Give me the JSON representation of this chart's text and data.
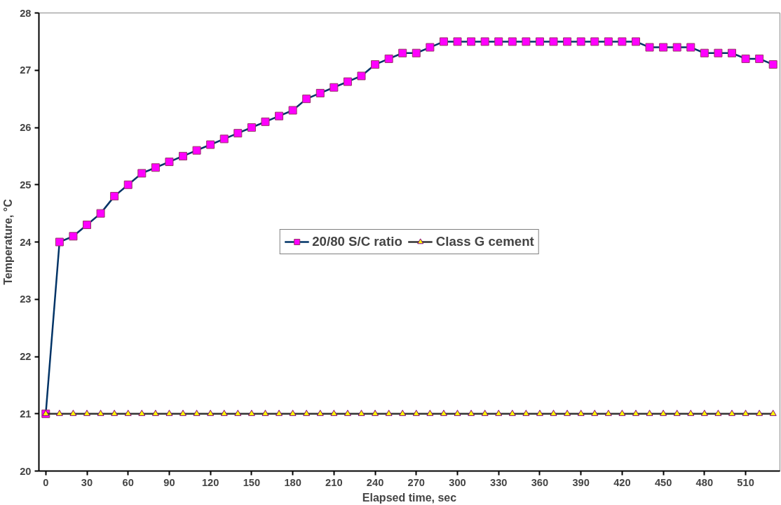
{
  "chart_data": {
    "type": "line",
    "xlabel": "Elapsed time, sec",
    "ylabel": "Temperature, °C",
    "x": [
      0,
      10,
      20,
      30,
      40,
      50,
      60,
      70,
      80,
      90,
      100,
      110,
      120,
      130,
      140,
      150,
      160,
      170,
      180,
      190,
      200,
      210,
      220,
      230,
      240,
      250,
      260,
      270,
      280,
      290,
      300,
      310,
      320,
      330,
      340,
      350,
      360,
      370,
      380,
      390,
      400,
      410,
      420,
      430,
      440,
      450,
      460,
      470,
      480,
      490,
      500,
      510,
      520,
      530
    ],
    "series": [
      {
        "name": "20/80 S/C ratio",
        "color": "#ff00ff",
        "marker": "square",
        "values": [
          21,
          24.0,
          24.1,
          24.3,
          24.5,
          24.8,
          25.0,
          25.2,
          25.3,
          25.4,
          25.5,
          25.6,
          25.7,
          25.8,
          25.9,
          26.0,
          26.1,
          26.2,
          26.3,
          26.5,
          26.6,
          26.7,
          26.8,
          26.9,
          27.1,
          27.2,
          27.3,
          27.3,
          27.4,
          27.5,
          27.5,
          27.5,
          27.5,
          27.5,
          27.5,
          27.5,
          27.5,
          27.5,
          27.5,
          27.5,
          27.5,
          27.5,
          27.5,
          27.5,
          27.4,
          27.4,
          27.4,
          27.4,
          27.3,
          27.3,
          27.3,
          27.2,
          27.2,
          27.1
        ]
      },
      {
        "name": "Class G cement",
        "color": "#ffff00",
        "marker": "triangle",
        "values": [
          21,
          21,
          21,
          21,
          21,
          21,
          21,
          21,
          21,
          21,
          21,
          21,
          21,
          21,
          21,
          21,
          21,
          21,
          21,
          21,
          21,
          21,
          21,
          21,
          21,
          21,
          21,
          21,
          21,
          21,
          21,
          21,
          21,
          21,
          21,
          21,
          21,
          21,
          21,
          21,
          21,
          21,
          21,
          21,
          21,
          21,
          21,
          21,
          21,
          21,
          21,
          21,
          21,
          21
        ]
      }
    ],
    "xlim": [
      -5,
      535
    ],
    "xticks": [
      0,
      30,
      60,
      90,
      120,
      150,
      180,
      210,
      240,
      270,
      300,
      330,
      360,
      390,
      420,
      450,
      480,
      510
    ],
    "ylim": [
      20,
      28
    ],
    "yticks": [
      20,
      21,
      22,
      23,
      24,
      25,
      26,
      27,
      28
    ],
    "grid": false,
    "legend": "center",
    "line_style": "solid"
  }
}
